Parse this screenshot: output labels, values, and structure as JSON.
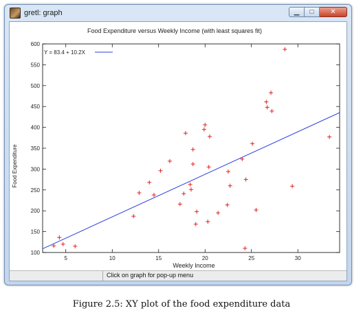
{
  "window": {
    "title": "gretl: graph",
    "minimize_glyph": "▁",
    "maximize_glyph": "□",
    "close_glyph": "✕",
    "app_icon": "gretl-icon"
  },
  "status_bar": {
    "text": "Click on graph for pop-up menu"
  },
  "caption": "Figure 2.5: XY plot of the food expenditure data",
  "chart_data": {
    "type": "scatter",
    "title": "Food Expenditure versus Weekly Income (with least squares fit)",
    "xlabel": "Weekly Income",
    "ylabel": "Food Expenditure",
    "xlim": [
      2.5,
      34.5
    ],
    "ylim": [
      100,
      600
    ],
    "xticks": [
      5,
      10,
      15,
      20,
      25,
      30
    ],
    "yticks": [
      100,
      150,
      200,
      250,
      300,
      350,
      400,
      450,
      500,
      550,
      600
    ],
    "grid": false,
    "legend_position": "top-left",
    "marker_color": "#e0201c",
    "line_color": "#2f3fe0",
    "points": [
      [
        3.7,
        116
      ],
      [
        4.3,
        136
      ],
      [
        4.7,
        120
      ],
      [
        6.0,
        115
      ],
      [
        12.3,
        187
      ],
      [
        12.9,
        243
      ],
      [
        14.0,
        268
      ],
      [
        14.5,
        238
      ],
      [
        15.2,
        296
      ],
      [
        16.2,
        319
      ],
      [
        17.3,
        216
      ],
      [
        17.7,
        241
      ],
      [
        17.9,
        386
      ],
      [
        18.4,
        263
      ],
      [
        18.5,
        251
      ],
      [
        18.7,
        312
      ],
      [
        18.7,
        347
      ],
      [
        19.0,
        168
      ],
      [
        19.1,
        198
      ],
      [
        19.9,
        395
      ],
      [
        20.0,
        406
      ],
      [
        20.3,
        174
      ],
      [
        20.4,
        305
      ],
      [
        20.5,
        378
      ],
      [
        21.4,
        195
      ],
      [
        22.4,
        214
      ],
      [
        22.5,
        294
      ],
      [
        22.7,
        260
      ],
      [
        24.0,
        324
      ],
      [
        24.3,
        110
      ],
      [
        24.4,
        275
      ],
      [
        25.1,
        361
      ],
      [
        25.5,
        202
      ],
      [
        26.6,
        461
      ],
      [
        26.7,
        448
      ],
      [
        27.1,
        483
      ],
      [
        27.2,
        439
      ],
      [
        28.6,
        587
      ],
      [
        29.4,
        259
      ],
      [
        33.4,
        377
      ]
    ],
    "fit_line": {
      "label": "Y = 83.4 + 10.2X",
      "intercept": 83.4,
      "slope": 10.2
    }
  }
}
